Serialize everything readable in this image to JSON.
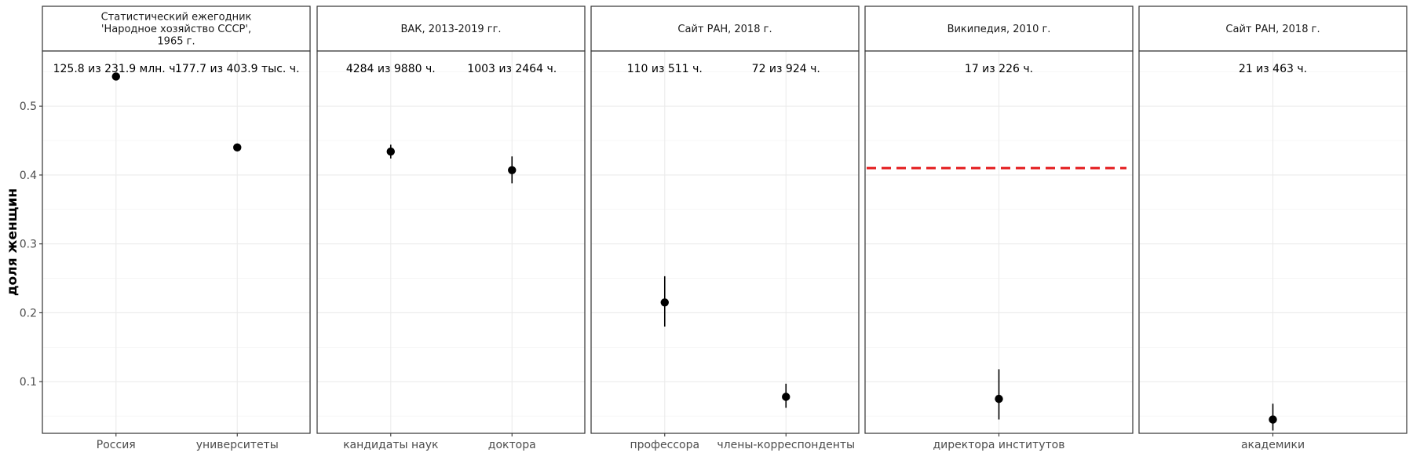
{
  "chart_data": {
    "type": "scatter",
    "ylabel": "доля женщин",
    "ylim": [
      0.025,
      0.58
    ],
    "yticks": [
      0.1,
      0.2,
      0.3,
      0.4,
      0.5
    ],
    "ytick_labels": [
      "0.1",
      "0.2",
      "0.3",
      "0.4",
      "0.5"
    ],
    "grid": true,
    "panels": [
      {
        "title_lines": [
          "Статистический ежегодник",
          "'Народное хозяйство СССР',",
          "1965 г."
        ],
        "categories": [
          "Россия",
          "университеты"
        ],
        "counts": [
          "125.8 из 231.9 млн. ч.",
          "177.7 из 403.9 тыс. ч."
        ],
        "values": [
          0.543,
          0.44
        ],
        "lower": [
          0.543,
          0.44
        ],
        "upper": [
          0.543,
          0.44
        ],
        "reference_line": null
      },
      {
        "title_lines": [
          "ВАК, 2013-2019 гг."
        ],
        "categories": [
          "кандидаты наук",
          "доктора"
        ],
        "counts": [
          "4284 из 9880 ч.",
          "1003 из 2464 ч."
        ],
        "values": [
          0.434,
          0.407
        ],
        "lower": [
          0.424,
          0.388
        ],
        "upper": [
          0.444,
          0.427
        ],
        "reference_line": null
      },
      {
        "title_lines": [
          "Сайт РАН, 2018 г."
        ],
        "categories": [
          "профессора",
          "члены-корреспонденты"
        ],
        "counts": [
          "110 из 511 ч.",
          "72 из 924 ч."
        ],
        "values": [
          0.215,
          0.078
        ],
        "lower": [
          0.18,
          0.062
        ],
        "upper": [
          0.253,
          0.097
        ],
        "reference_line": null
      },
      {
        "title_lines": [
          "Википедия, 2010 г."
        ],
        "categories": [
          "директора институтов"
        ],
        "counts": [
          "17 из 226 ч."
        ],
        "values": [
          0.075
        ],
        "lower": [
          0.045
        ],
        "upper": [
          0.118
        ],
        "reference_line": 0.41
      },
      {
        "title_lines": [
          "Сайт РАН, 2018 г."
        ],
        "categories": [
          "академики"
        ],
        "counts": [
          "21 из 463 ч."
        ],
        "values": [
          0.045
        ],
        "lower": [
          0.029
        ],
        "upper": [
          0.068
        ],
        "reference_line": null
      }
    ],
    "colors": {
      "point": "#000000",
      "reference_line": "#e41a1c",
      "grid": "#ebebeb",
      "border": "#333333"
    }
  }
}
